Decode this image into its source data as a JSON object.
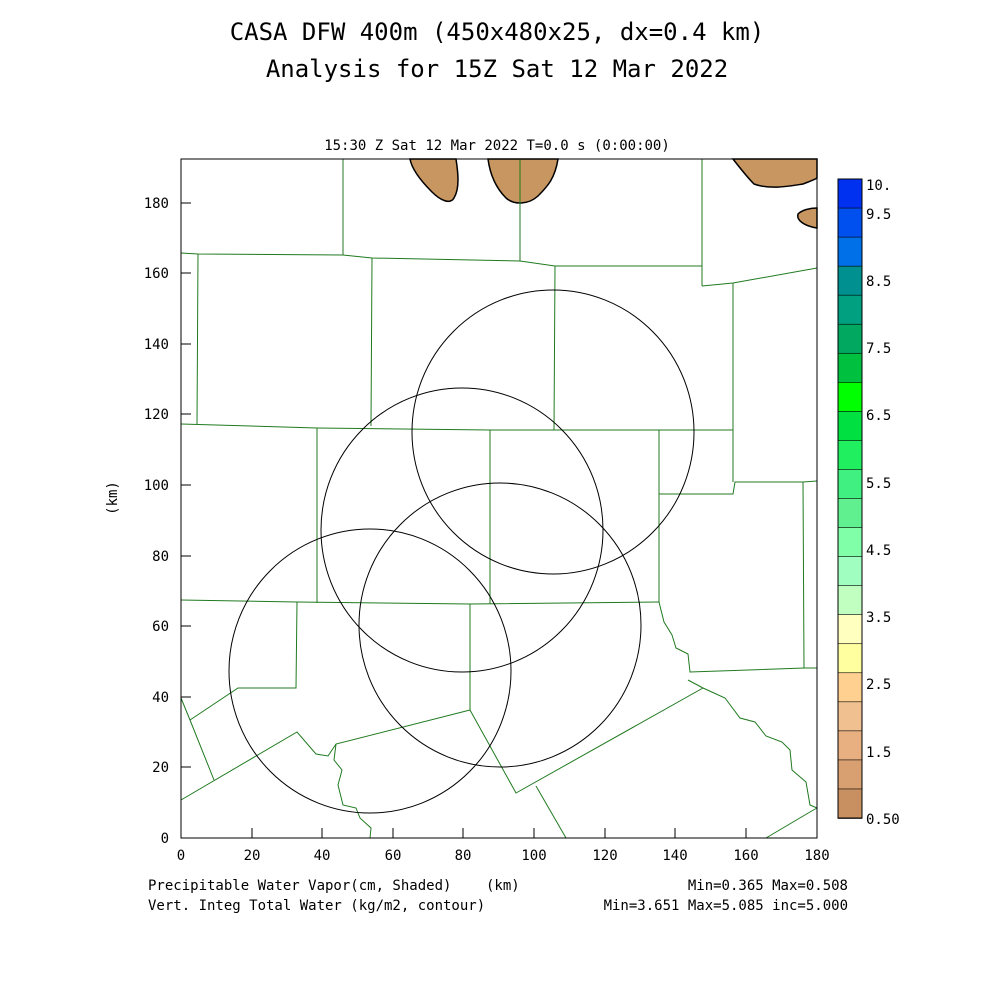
{
  "title_line1": "CASA DFW 400m (450x480x25, dx=0.4 km)",
  "title_line2": "Analysis for 15Z Sat 12 Mar 2022",
  "time_label": "15:30 Z Sat 12 Mar 2022    T=0.0 s (0:00:00)",
  "x_unit": "(km)",
  "y_unit": "(km)",
  "x_ticks": [
    "0",
    "20",
    "40",
    "60",
    "80",
    "100",
    "120",
    "140",
    "160",
    "180"
  ],
  "y_ticks": [
    "0",
    "20",
    "40",
    "60",
    "80",
    "100",
    "120",
    "140",
    "160",
    "180"
  ],
  "footer": {
    "shaded_label": "Precipitable Water Vapor(cm, Shaded)",
    "contour_label": "Vert. Integ Total Water (kg/m2, contour)",
    "shaded_stats": "Min=0.365 Max=0.508",
    "contour_stats": "Min=3.651 Max=5.085 inc=5.000"
  },
  "colorbar": {
    "labels": [
      "10.",
      "9.5",
      "8.5",
      "7.5",
      "6.5",
      "5.5",
      "4.5",
      "3.5",
      "2.5",
      "1.5",
      "0.50"
    ],
    "colors_top_to_bottom": [
      "#0030f0",
      "#0050f0",
      "#0070e8",
      "#009090",
      "#00a080",
      "#00a860",
      "#00c040",
      "#00ff00",
      "#00e040",
      "#20f060",
      "#40f080",
      "#60f090",
      "#80ffa8",
      "#a0ffc0",
      "#c0ffc0",
      "#ffffc0",
      "#ffffa0",
      "#ffd090",
      "#f0c090",
      "#e8b080",
      "#d8a070",
      "#c89060"
    ]
  },
  "chart_data": {
    "type": "map",
    "xlim": [
      0,
      180
    ],
    "ylim": [
      0,
      192
    ],
    "shaded_field": "Precipitable Water Vapor (cm)",
    "contour_field": "Vert. Integ Total Water (kg/m2)",
    "radar_coverage_circles_km": [
      {
        "center": [
          80,
          87
        ],
        "radius": 40
      },
      {
        "center": [
          105,
          115
        ],
        "radius": 40
      },
      {
        "center": [
          90,
          61
        ],
        "radius": 40
      },
      {
        "center": [
          54,
          47
        ],
        "radius": 40
      }
    ],
    "shaded_regions_color": "#c89660",
    "county_line_color": "#207a20"
  }
}
